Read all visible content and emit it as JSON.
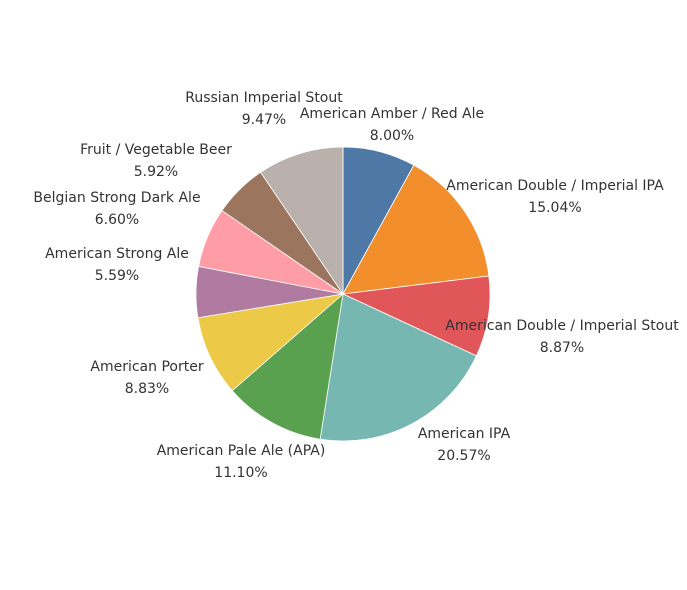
{
  "chart_data": {
    "type": "pie",
    "start_angle_deg": 0,
    "direction": "clockwise",
    "slices": [
      {
        "name": "American Amber / Red Ale",
        "value": 8.0,
        "label": "8.00%",
        "color": "#4e79a7"
      },
      {
        "name": "American Double / Imperial IPA",
        "value": 15.04,
        "label": "15.04%",
        "color": "#f28e2b"
      },
      {
        "name": "American Double / Imperial Stout",
        "value": 8.87,
        "label": "8.87%",
        "color": "#e15759"
      },
      {
        "name": "American IPA",
        "value": 20.57,
        "label": "20.57%",
        "color": "#76b7b2"
      },
      {
        "name": "American Pale Ale (APA)",
        "value": 11.1,
        "label": "11.10%",
        "color": "#59a14f"
      },
      {
        "name": "American Porter",
        "value": 8.83,
        "label": "8.83%",
        "color": "#edc948"
      },
      {
        "name": "American Strong Ale",
        "value": 5.59,
        "label": "5.59%",
        "color": "#b07aa1"
      },
      {
        "name": "Belgian Strong Dark Ale",
        "value": 6.6,
        "label": "6.60%",
        "color": "#ff9da7"
      },
      {
        "name": "Fruit / Vegetable Beer",
        "value": 5.92,
        "label": "5.92%",
        "color": "#9c755f"
      },
      {
        "name": "Russian Imperial Stout",
        "value": 9.47,
        "label": "9.47%",
        "color": "#bab0ac"
      }
    ]
  }
}
